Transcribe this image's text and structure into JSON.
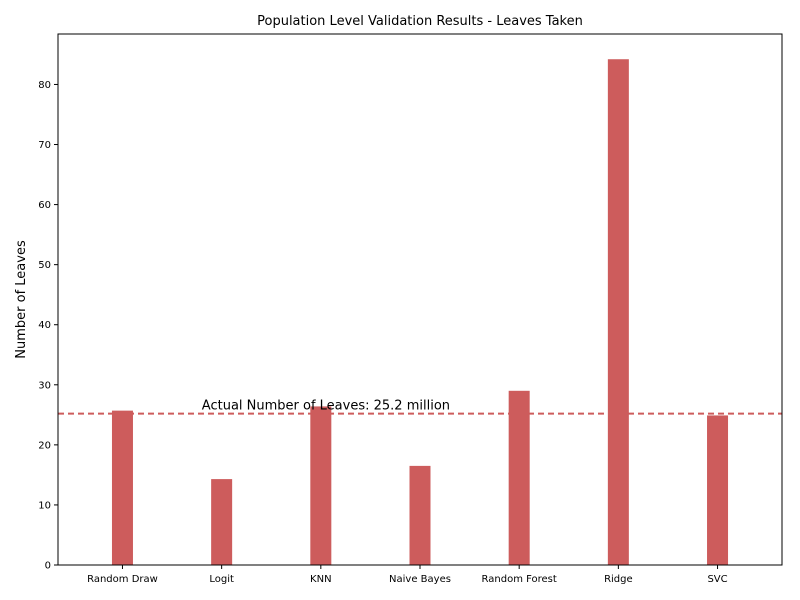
{
  "chart_data": {
    "type": "bar",
    "title": "Population Level Validation Results - Leaves Taken",
    "xlabel": "",
    "ylabel": "Number of Leaves",
    "categories": [
      "Random Draw",
      "Logit",
      "KNN",
      "Naive Bayes",
      "Random Forest",
      "Ridge",
      "SVC"
    ],
    "values": [
      25.7,
      14.3,
      26.4,
      16.5,
      29.0,
      84.2,
      24.9
    ],
    "ylim": [
      0,
      88.4
    ],
    "yticks": [
      0,
      10,
      20,
      30,
      40,
      50,
      60,
      70,
      80
    ],
    "grid": false,
    "bar_color": "#cd5c5c",
    "reference_line": {
      "value": 25.2,
      "label": "Actual Number of Leaves: 25.2 million",
      "color": "#cd5c5c",
      "style": "dashed"
    }
  }
}
